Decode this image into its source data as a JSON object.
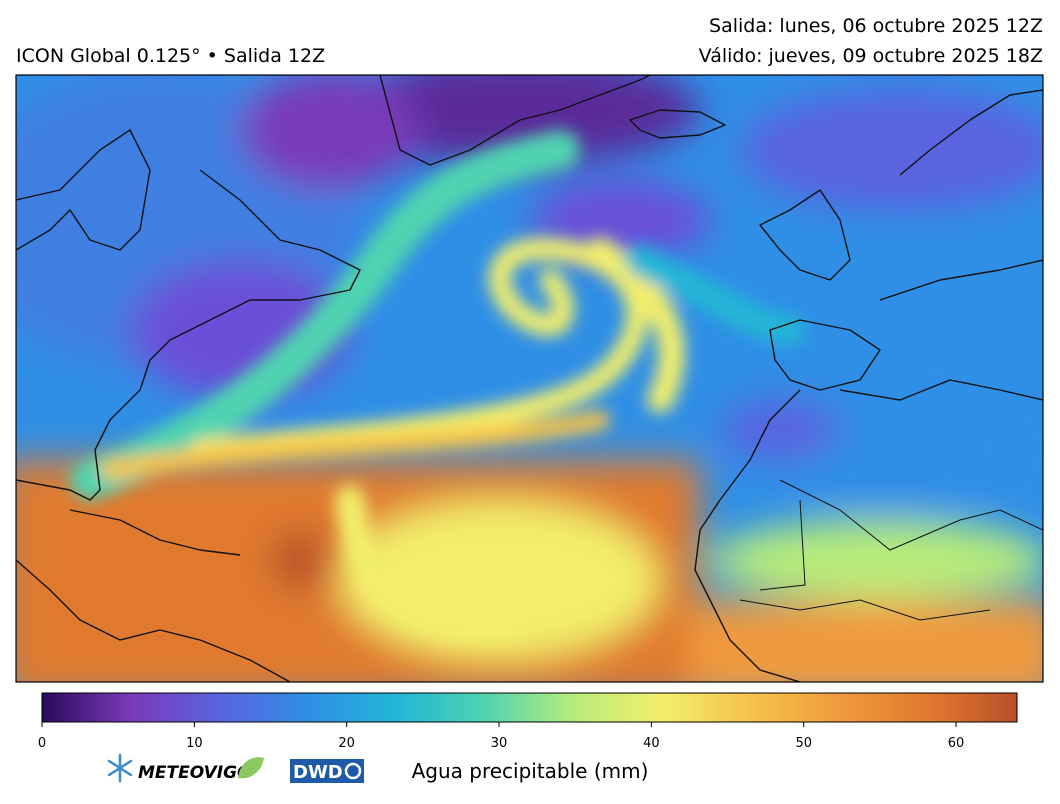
{
  "header": {
    "title": "ICON Global 0.125° • Salida 12Z",
    "run": "Salida: lunes, 06 octubre 2025 12Z",
    "valid": "Válido: jueves, 09 octubre 2025 18Z"
  },
  "colorbar": {
    "label": "Agua precipitable (mm)",
    "range": [
      0,
      64
    ],
    "ticks": [
      0,
      10,
      20,
      30,
      40,
      50,
      60
    ],
    "colors": [
      "#2b0a5c",
      "#7a3ab8",
      "#5a63e0",
      "#2f8fe6",
      "#22b6d6",
      "#4fd3b0",
      "#b8ec7a",
      "#f2ee6c",
      "#f7c24a",
      "#f09a3c",
      "#e07a2e",
      "#b9502a"
    ]
  },
  "logos": {
    "meteovigo": "METEOVIGO",
    "dwd": "DWD"
  }
}
